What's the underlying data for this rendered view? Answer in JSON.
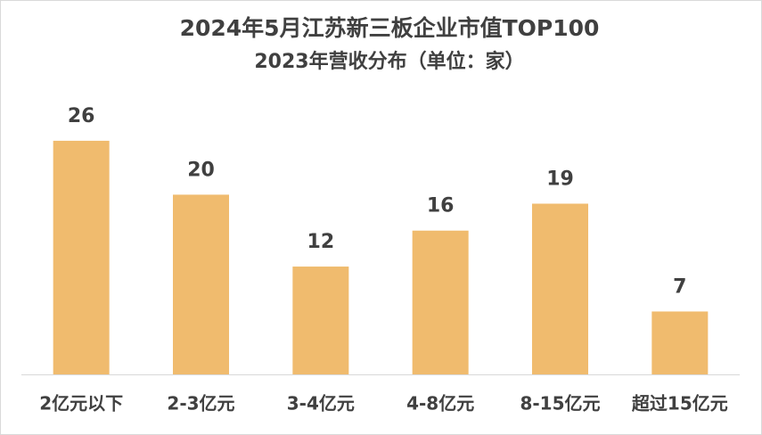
{
  "chart_data": {
    "type": "bar",
    "title": "2024年5月江苏新三板企业市值TOP100",
    "subtitle": "2023年营收分布（单位：家）",
    "categories": [
      "2亿元以下",
      "2-3亿元",
      "3-4亿元",
      "4-8亿元",
      "8-15亿元",
      "超过15亿元"
    ],
    "values": [
      26,
      20,
      12,
      16,
      19,
      7
    ],
    "color": "#f0bb6e"
  }
}
